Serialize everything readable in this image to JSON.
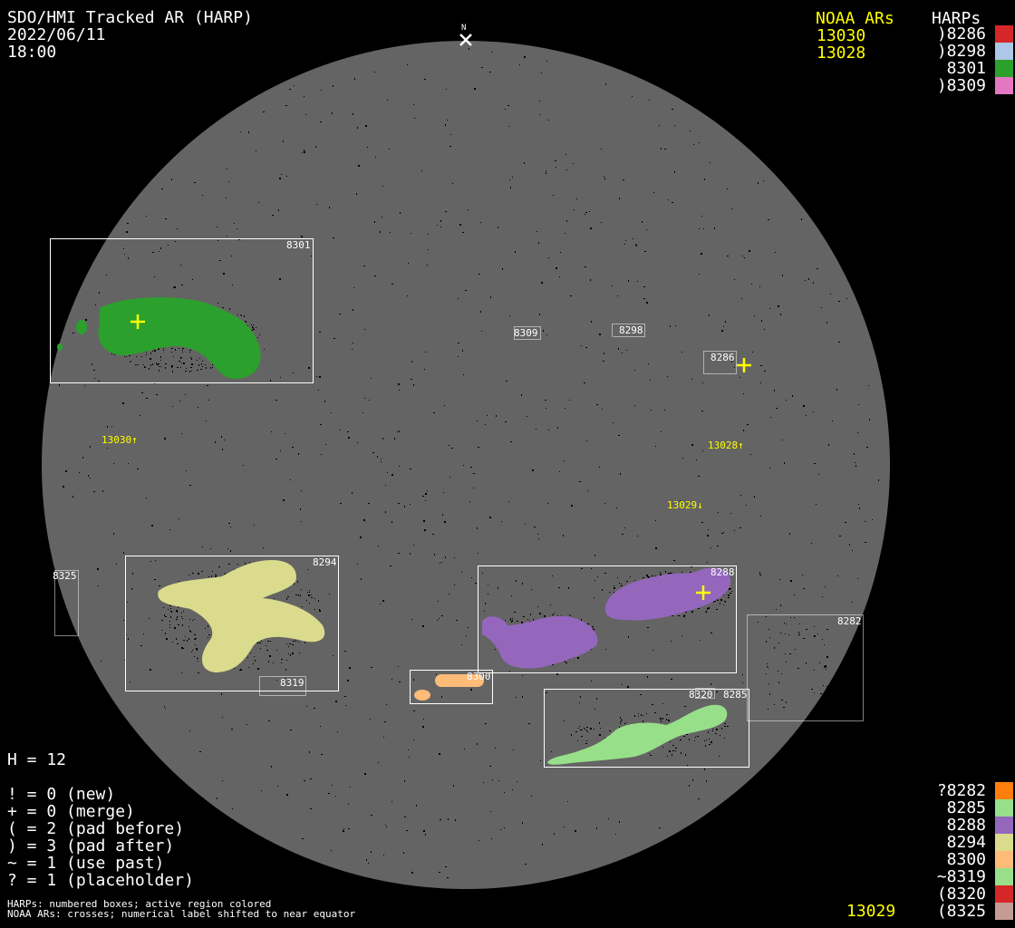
{
  "header": {
    "title": "SDO/HMI Tracked AR (HARP)",
    "date": "2022/06/11",
    "time": "18:00"
  },
  "north_label": "N",
  "noaa": {
    "header": "NOAA ARs",
    "top": [
      "13030",
      "13028"
    ],
    "bottom": [
      "13029"
    ]
  },
  "harps": {
    "header": "HARPs",
    "top": [
      {
        "label": ")8286",
        "color": "#d62728"
      },
      {
        "label": ")8298",
        "color": "#aec7e8"
      },
      {
        "label": "8301",
        "color": "#2ca02c"
      },
      {
        "label": ")8309",
        "color": "#e377c2"
      }
    ],
    "bottom": [
      {
        "label": "?8282",
        "color": "#ff7f0e"
      },
      {
        "label": "8285",
        "color": "#98df8a"
      },
      {
        "label": "8288",
        "color": "#9467bd"
      },
      {
        "label": "8294",
        "color": "#dbdb8d"
      },
      {
        "label": "8300",
        "color": "#ffbb78"
      },
      {
        "label": "~8319",
        "color": "#98df8a"
      },
      {
        "label": "(8320",
        "color": "#d62728"
      },
      {
        "label": "(8325",
        "color": "#c49c94"
      }
    ]
  },
  "stats": {
    "h": "H = 12",
    "lines": [
      "! = 0 (new)",
      "+ = 0 (merge)",
      "( = 2 (pad before)",
      ") = 3 (pad after)",
      "~ = 1 (use past)",
      "? = 1 (placeholder)"
    ]
  },
  "footnotes": [
    "HARPs: numbered boxes; active region colored",
    "NOAA ARs: crosses; numerical label shifted to near equator"
  ],
  "disk": {
    "box_labels": {
      "b8301": "8301",
      "b8309": "8309",
      "b8298": "8298",
      "b8286": "8286",
      "b8294": "8294",
      "b8319": "8319",
      "b8325": "8325",
      "b8300": "8300",
      "b8288": "8288",
      "b8282": "8282",
      "b8285": "8285",
      "b8320": "8320"
    },
    "noaa_labels": {
      "n13030": "13030↑",
      "n13028": "13028↑",
      "n13029": "13029↓"
    }
  },
  "colors": {
    "disk": "#646464",
    "noaa": "#ffff00"
  }
}
